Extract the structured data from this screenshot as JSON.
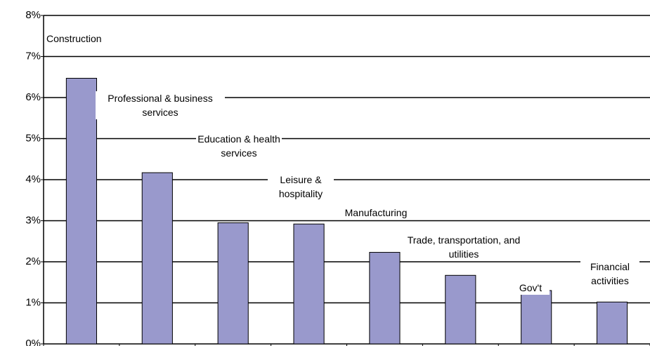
{
  "chart_data": {
    "type": "bar",
    "categories": [
      "Construction",
      "Professional & business services",
      "Education & health services",
      "Leisure & hospitality",
      "Manufacturing",
      "Trade, transportation, and utilities",
      "Gov't",
      "Financial activities"
    ],
    "values": [
      6.47,
      4.17,
      2.95,
      2.92,
      2.23,
      1.67,
      1.3,
      1.02
    ],
    "color": "#9999cc",
    "ylim": [
      0,
      8
    ],
    "yticks": [
      {
        "value": 0,
        "label": "0%"
      },
      {
        "value": 1,
        "label": "1%"
      },
      {
        "value": 2,
        "label": "2%"
      },
      {
        "value": 3,
        "label": "3%"
      },
      {
        "value": 4,
        "label": "4%"
      },
      {
        "value": 5,
        "label": "5%"
      },
      {
        "value": 6,
        "label": "6%"
      },
      {
        "value": 7,
        "label": "7%"
      },
      {
        "value": 8,
        "label": "8%"
      }
    ],
    "grid": true
  }
}
